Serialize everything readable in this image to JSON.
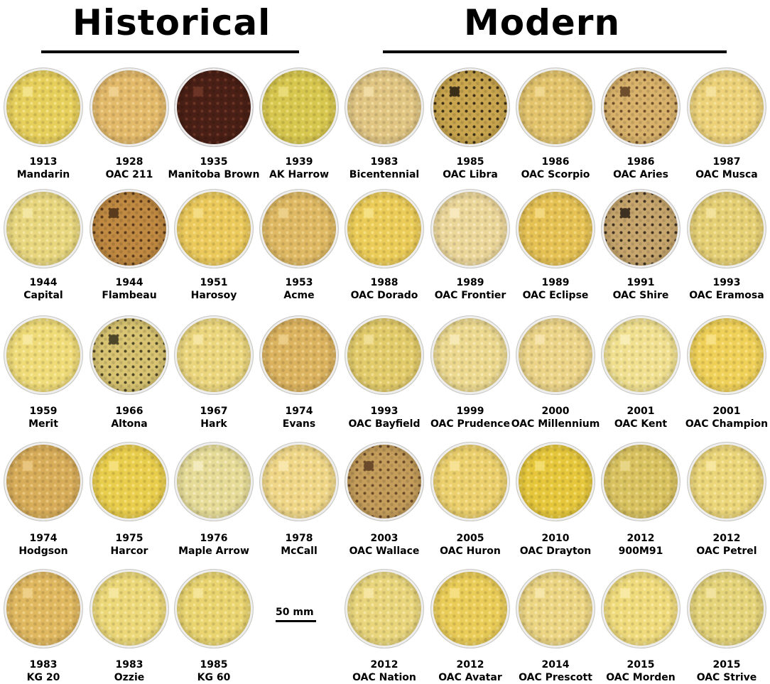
{
  "headings": {
    "historical": "Historical",
    "modern": "Modern"
  },
  "scale_bar": {
    "label": "50 mm",
    "value_mm": 50
  },
  "varieties": [
    {
      "year": "1913",
      "name": "Mandarin",
      "group": "historical",
      "color": "#e7cf5c",
      "speck": "#f3e38a"
    },
    {
      "year": "1928",
      "name": "OAC 211",
      "group": "historical",
      "color": "#e3b96a",
      "speck": "#efd08e"
    },
    {
      "year": "1935",
      "name": "Manitoba Brown",
      "group": "historical",
      "color": "#4a2016",
      "speck": "#6b3424"
    },
    {
      "year": "1939",
      "name": "AK Harrow",
      "group": "historical",
      "color": "#d8c74f",
      "speck": "#e9dc78"
    },
    {
      "year": "1983",
      "name": "Bicentennial",
      "group": "modern",
      "color": "#e0c583",
      "speck": "#f0dca4"
    },
    {
      "year": "1985",
      "name": "OAC Libra",
      "group": "modern",
      "color": "#c9a64f",
      "speck": "#3b2e18"
    },
    {
      "year": "1986",
      "name": "OAC Scorpio",
      "group": "modern",
      "color": "#e3c46d",
      "speck": "#f0d890"
    },
    {
      "year": "1986",
      "name": "OAC Aries",
      "group": "modern",
      "color": "#d9b36c",
      "speck": "#6e4e2c"
    },
    {
      "year": "1987",
      "name": "OAC Musca",
      "group": "modern",
      "color": "#edd27a",
      "speck": "#f5e29d"
    },
    {
      "year": "1944",
      "name": "Capital",
      "group": "historical",
      "color": "#e8d77e",
      "speck": "#f4e7a3"
    },
    {
      "year": "1944",
      "name": "Flambeau",
      "group": "historical",
      "color": "#c08a42",
      "speck": "#5a3a1c"
    },
    {
      "year": "1951",
      "name": "Harosoy",
      "group": "historical",
      "color": "#ebc95b",
      "speck": "#f4dc84"
    },
    {
      "year": "1953",
      "name": "Acme",
      "group": "historical",
      "color": "#dfb963",
      "speck": "#ecd08a"
    },
    {
      "year": "1988",
      "name": "OAC Dorado",
      "group": "modern",
      "color": "#eccc58",
      "speck": "#f6e084"
    },
    {
      "year": "1989",
      "name": "OAC Frontier",
      "group": "modern",
      "color": "#ecd79a",
      "speck": "#f7e8bd"
    },
    {
      "year": "1989",
      "name": "OAC Eclipse",
      "group": "modern",
      "color": "#e6c254",
      "speck": "#f3d87f"
    },
    {
      "year": "1991",
      "name": "OAC Shire",
      "group": "modern",
      "color": "#c8a76e",
      "speck": "#3e3122"
    },
    {
      "year": "1993",
      "name": "OAC Eramosa",
      "group": "modern",
      "color": "#e6d075",
      "speck": "#f2e29b"
    },
    {
      "year": "1959",
      "name": "Merit",
      "group": "historical",
      "color": "#efdb78",
      "speck": "#f7e9a0"
    },
    {
      "year": "1966",
      "name": "Altona",
      "group": "historical",
      "color": "#d8c472",
      "speck": "#4e4628"
    },
    {
      "year": "1967",
      "name": "Hark",
      "group": "historical",
      "color": "#ebd67d",
      "speck": "#f5e6a4"
    },
    {
      "year": "1974",
      "name": "Evans",
      "group": "historical",
      "color": "#dcb35f",
      "speck": "#ebcd88"
    },
    {
      "year": "1993",
      "name": "OAC Bayfield",
      "group": "modern",
      "color": "#e2cb6a",
      "speck": "#f0de95"
    },
    {
      "year": "1999",
      "name": "OAC Prudence",
      "group": "modern",
      "color": "#ecd98f",
      "speck": "#f6e9b5"
    },
    {
      "year": "2000",
      "name": "OAC Millennium",
      "group": "modern",
      "color": "#ecd488",
      "speck": "#f6e4ac"
    },
    {
      "year": "2001",
      "name": "OAC Kent",
      "group": "modern",
      "color": "#f0e08f",
      "speck": "#f8edb7"
    },
    {
      "year": "2001",
      "name": "OAC Champion",
      "group": "modern",
      "color": "#efd058",
      "speck": "#f7e184"
    },
    {
      "year": "1974",
      "name": "Hodgson",
      "group": "historical",
      "color": "#d8ad5a",
      "speck": "#e8c680"
    },
    {
      "year": "1975",
      "name": "Harcor",
      "group": "historical",
      "color": "#e9cd4c",
      "speck": "#f4df7a"
    },
    {
      "year": "1976",
      "name": "Maple Arrow",
      "group": "historical",
      "color": "#e6dc98",
      "speck": "#f3ebbd"
    },
    {
      "year": "1978",
      "name": "McCall",
      "group": "historical",
      "color": "#f0d788",
      "speck": "#f8e7ad"
    },
    {
      "year": "2003",
      "name": "OAC Wallace",
      "group": "modern",
      "color": "#c59e5c",
      "speck": "#6a4a2a"
    },
    {
      "year": "2005",
      "name": "OAC Huron",
      "group": "modern",
      "color": "#ecd06d",
      "speck": "#f6e194"
    },
    {
      "year": "2010",
      "name": "OAC Drayton",
      "group": "modern",
      "color": "#e6c73c",
      "speck": "#f3dc6e"
    },
    {
      "year": "2012",
      "name": "900M91",
      "group": "modern",
      "color": "#d9c260",
      "speck": "#e8d686"
    },
    {
      "year": "2012",
      "name": "OAC Petrel",
      "group": "modern",
      "color": "#ecd67a",
      "speck": "#f6e6a0"
    },
    {
      "year": "1983",
      "name": "KG 20",
      "group": "historical",
      "color": "#e0b860",
      "speck": "#eed088"
    },
    {
      "year": "1983",
      "name": "Ozzie",
      "group": "historical",
      "color": "#ecd878",
      "speck": "#f6e7a0"
    },
    {
      "year": "1985",
      "name": "KG 60",
      "group": "historical",
      "color": "#e9d470",
      "speck": "#f5e598"
    },
    {
      "year": "2012",
      "name": "OAC Nation",
      "group": "modern",
      "color": "#e9d67c",
      "speck": "#f5e6a3"
    },
    {
      "year": "2012",
      "name": "OAC Avatar",
      "group": "modern",
      "color": "#eacc58",
      "speck": "#f5df82"
    },
    {
      "year": "2014",
      "name": "OAC Prescott",
      "group": "modern",
      "color": "#ecd583",
      "speck": "#f6e6aa"
    },
    {
      "year": "2015",
      "name": "OAC Morden",
      "group": "modern",
      "color": "#f0db7c",
      "speck": "#f8eaa4"
    },
    {
      "year": "2015",
      "name": "OAC Strive",
      "group": "modern",
      "color": "#e5d47a",
      "speck": "#f2e4a0"
    }
  ]
}
